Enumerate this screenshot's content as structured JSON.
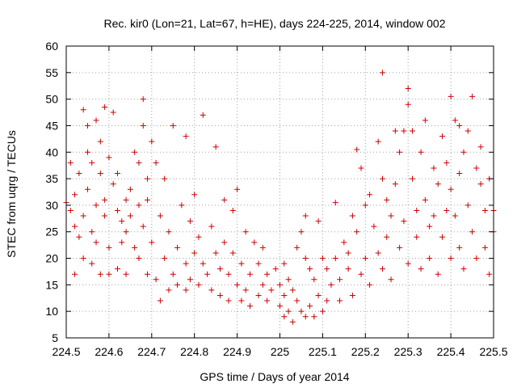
{
  "chart_data": {
    "type": "scatter",
    "title": "Rec. kir0 (Lon=21, Lat=67, h=HE), days 224-225, 2014, window 002",
    "xlabel": "GPS time / Days of year 2014",
    "ylabel": "STEC from uqrg / TECUs",
    "xlim": [
      224.5,
      225.5
    ],
    "ylim": [
      5,
      60
    ],
    "xticks": [
      224.5,
      224.6,
      224.7,
      224.8,
      224.9,
      225,
      225.1,
      225.2,
      225.3,
      225.4,
      225.5
    ],
    "xtick_labels": [
      "224.5",
      "224.6",
      "224.7",
      "224.8",
      "224.9",
      "225",
      "225.1",
      "225.2",
      "225.3",
      "225.4",
      "225.5"
    ],
    "yticks": [
      5,
      10,
      15,
      20,
      25,
      30,
      35,
      40,
      45,
      50,
      55,
      60
    ],
    "ytick_labels": [
      "5",
      "10",
      "15",
      "20",
      "25",
      "30",
      "35",
      "40",
      "45",
      "50",
      "55",
      "60"
    ],
    "grid": true,
    "marker": "plus",
    "color": "#cc0000",
    "points": [
      [
        224.5,
        30.5
      ],
      [
        224.51,
        38
      ],
      [
        224.51,
        29
      ],
      [
        224.52,
        32
      ],
      [
        224.52,
        26
      ],
      [
        224.52,
        17
      ],
      [
        224.53,
        36
      ],
      [
        224.53,
        24
      ],
      [
        224.54,
        28
      ],
      [
        224.54,
        20
      ],
      [
        224.54,
        48
      ],
      [
        224.55,
        45
      ],
      [
        224.55,
        40
      ],
      [
        224.55,
        33
      ],
      [
        224.56,
        38
      ],
      [
        224.56,
        25
      ],
      [
        224.56,
        19
      ],
      [
        224.57,
        30
      ],
      [
        224.57,
        23
      ],
      [
        224.57,
        46
      ],
      [
        224.58,
        42
      ],
      [
        224.58,
        36
      ],
      [
        224.58,
        17
      ],
      [
        224.59,
        48.5
      ],
      [
        224.59,
        31
      ],
      [
        224.59,
        28
      ],
      [
        224.6,
        39
      ],
      [
        224.6,
        22
      ],
      [
        224.6,
        17
      ],
      [
        224.61,
        47.5
      ],
      [
        224.61,
        34
      ],
      [
        224.62,
        36
      ],
      [
        224.62,
        29
      ],
      [
        224.62,
        18
      ],
      [
        224.63,
        27
      ],
      [
        224.63,
        23
      ],
      [
        224.64,
        31
      ],
      [
        224.64,
        25
      ],
      [
        224.64,
        17
      ],
      [
        224.65,
        33
      ],
      [
        224.65,
        28
      ],
      [
        224.66,
        40
      ],
      [
        224.66,
        22
      ],
      [
        224.67,
        38
      ],
      [
        224.67,
        30
      ],
      [
        224.67,
        20
      ],
      [
        224.68,
        50
      ],
      [
        224.68,
        45
      ],
      [
        224.68,
        26
      ],
      [
        224.69,
        35
      ],
      [
        224.69,
        31
      ],
      [
        224.69,
        17
      ],
      [
        224.7,
        42
      ],
      [
        224.7,
        23
      ],
      [
        224.71,
        38
      ],
      [
        224.71,
        16
      ],
      [
        224.72,
        28
      ],
      [
        224.72,
        12
      ],
      [
        224.73,
        35
      ],
      [
        224.73,
        20
      ],
      [
        224.74,
        25
      ],
      [
        224.74,
        14
      ],
      [
        224.75,
        45
      ],
      [
        224.75,
        17
      ],
      [
        224.76,
        22
      ],
      [
        224.76,
        15
      ],
      [
        224.77,
        30
      ],
      [
        224.78,
        43
      ],
      [
        224.78,
        19
      ],
      [
        224.78,
        14
      ],
      [
        224.79,
        27
      ],
      [
        224.79,
        16
      ],
      [
        224.8,
        32
      ],
      [
        224.8,
        21
      ],
      [
        224.81,
        24
      ],
      [
        224.81,
        15
      ],
      [
        224.82,
        47
      ],
      [
        224.82,
        19
      ],
      [
        224.83,
        17
      ],
      [
        224.84,
        26
      ],
      [
        224.84,
        14
      ],
      [
        224.85,
        41
      ],
      [
        224.85,
        21
      ],
      [
        224.86,
        18
      ],
      [
        224.86,
        13
      ],
      [
        224.87,
        23
      ],
      [
        224.87,
        31
      ],
      [
        224.88,
        17
      ],
      [
        224.88,
        12
      ],
      [
        224.89,
        21
      ],
      [
        224.89,
        29
      ],
      [
        224.9,
        33
      ],
      [
        224.9,
        15
      ],
      [
        224.91,
        19
      ],
      [
        224.91,
        12
      ],
      [
        224.92,
        25
      ],
      [
        224.92,
        14
      ],
      [
        224.93,
        17
      ],
      [
        224.93,
        11
      ],
      [
        224.94,
        23
      ],
      [
        224.95,
        19
      ],
      [
        224.95,
        13
      ],
      [
        224.96,
        22
      ],
      [
        224.96,
        15
      ],
      [
        224.97,
        17
      ],
      [
        224.97,
        12
      ],
      [
        224.98,
        14
      ],
      [
        224.99,
        18
      ],
      [
        225.0,
        15
      ],
      [
        225.0,
        11
      ],
      [
        225.01,
        19
      ],
      [
        225.01,
        13
      ],
      [
        225.01,
        9
      ],
      [
        225.02,
        16
      ],
      [
        225.02,
        10
      ],
      [
        225.03,
        14
      ],
      [
        225.03,
        8
      ],
      [
        225.04,
        22
      ],
      [
        225.04,
        12
      ],
      [
        225.05,
        25
      ],
      [
        225.05,
        10
      ],
      [
        225.06,
        28
      ],
      [
        225.06,
        20
      ],
      [
        225.06,
        9
      ],
      [
        225.07,
        18
      ],
      [
        225.07,
        11
      ],
      [
        225.08,
        16
      ],
      [
        225.08,
        9
      ],
      [
        225.09,
        27
      ],
      [
        225.09,
        13
      ],
      [
        225.1,
        20
      ],
      [
        225.1,
        10
      ],
      [
        225.11,
        18
      ],
      [
        225.11,
        12
      ],
      [
        225.12,
        15
      ],
      [
        225.13,
        30.5
      ],
      [
        225.13,
        20
      ],
      [
        225.14,
        16
      ],
      [
        225.14,
        12
      ],
      [
        225.15,
        23
      ],
      [
        225.16,
        21
      ],
      [
        225.16,
        18
      ],
      [
        225.17,
        28
      ],
      [
        225.17,
        13
      ],
      [
        225.18,
        40.5
      ],
      [
        225.18,
        25
      ],
      [
        225.19,
        37
      ],
      [
        225.19,
        17
      ],
      [
        225.2,
        30
      ],
      [
        225.2,
        20
      ],
      [
        225.21,
        32
      ],
      [
        225.21,
        15
      ],
      [
        225.22,
        26
      ],
      [
        225.23,
        42
      ],
      [
        225.23,
        21
      ],
      [
        225.24,
        55
      ],
      [
        225.24,
        35
      ],
      [
        225.24,
        18
      ],
      [
        225.25,
        31
      ],
      [
        225.25,
        24
      ],
      [
        225.26,
        28
      ],
      [
        225.26,
        16
      ],
      [
        225.27,
        44
      ],
      [
        225.27,
        34
      ],
      [
        225.28,
        40
      ],
      [
        225.28,
        22
      ],
      [
        225.29,
        44
      ],
      [
        225.29,
        27
      ],
      [
        225.3,
        52
      ],
      [
        225.3,
        49
      ],
      [
        225.3,
        19
      ],
      [
        225.31,
        44
      ],
      [
        225.31,
        35
      ],
      [
        225.32,
        29
      ],
      [
        225.32,
        24
      ],
      [
        225.33,
        40
      ],
      [
        225.33,
        18
      ],
      [
        225.34,
        46
      ],
      [
        225.34,
        31
      ],
      [
        225.35,
        26
      ],
      [
        225.35,
        20
      ],
      [
        225.36,
        37
      ],
      [
        225.36,
        28
      ],
      [
        225.37,
        34
      ],
      [
        225.37,
        17
      ],
      [
        225.38,
        43
      ],
      [
        225.38,
        24
      ],
      [
        225.39,
        38
      ],
      [
        225.39,
        29
      ],
      [
        225.4,
        50.5
      ],
      [
        225.4,
        33
      ],
      [
        225.4,
        20
      ],
      [
        225.41,
        46
      ],
      [
        225.41,
        28
      ],
      [
        225.42,
        45
      ],
      [
        225.42,
        36
      ],
      [
        225.42,
        22
      ],
      [
        225.43,
        40
      ],
      [
        225.43,
        18
      ],
      [
        225.44,
        44
      ],
      [
        225.44,
        30
      ],
      [
        225.45,
        50.5
      ],
      [
        225.45,
        25
      ],
      [
        225.46,
        37
      ],
      [
        225.46,
        20
      ],
      [
        225.47,
        41
      ],
      [
        225.47,
        34
      ],
      [
        225.48,
        29
      ],
      [
        225.48,
        22
      ],
      [
        225.49,
        35
      ],
      [
        225.49,
        17
      ],
      [
        225.5,
        29
      ],
      [
        225.5,
        25
      ]
    ]
  }
}
